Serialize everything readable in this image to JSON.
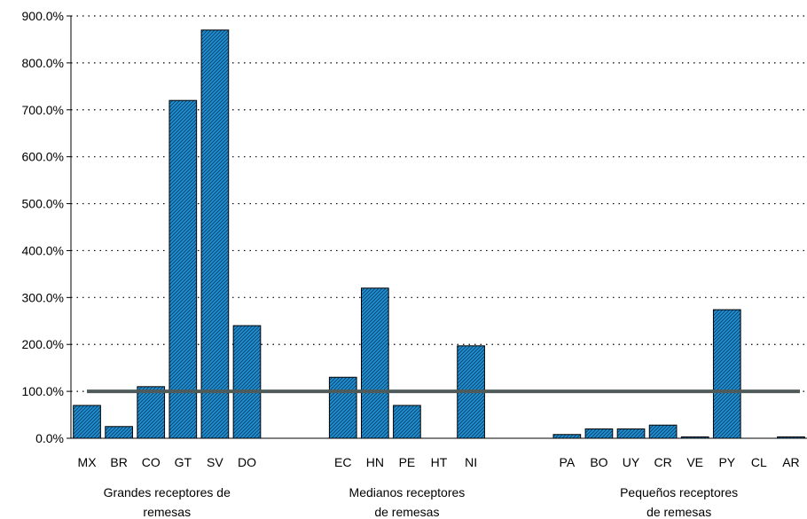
{
  "chart_data": {
    "type": "bar",
    "ylim": [
      0,
      900
    ],
    "ytick_values": [
      0,
      100,
      200,
      300,
      400,
      500,
      600,
      700,
      800,
      900
    ],
    "ytick_labels": [
      "0.0%",
      "100.0%",
      "200.0%",
      "300.0%",
      "400.0%",
      "500.0%",
      "600.0%",
      "700.0%",
      "800.0%",
      "900.0%"
    ],
    "grid": "horizontal dotted",
    "categories": [
      "MX",
      "BR",
      "CO",
      "GT",
      "SV",
      "DO",
      "",
      "",
      "EC",
      "HN",
      "PE",
      "HT",
      "NI",
      "",
      "",
      "PA",
      "BO",
      "UY",
      "CR",
      "VE",
      "PY",
      "CL",
      "AR"
    ],
    "values": [
      70,
      25,
      110,
      720,
      870,
      240,
      null,
      null,
      130,
      320,
      70,
      0,
      197,
      null,
      null,
      8,
      20,
      20,
      28,
      3,
      274,
      0,
      3
    ],
    "reference_line": {
      "value": 100,
      "color": "#4f5b5a"
    },
    "bar_color": "#1e90d2",
    "groups": [
      {
        "line1": "Grandes receptores de",
        "line2": "remesas",
        "from": 0,
        "to": 5
      },
      {
        "line1": "Medianos receptores",
        "line2": "de remesas",
        "from": 8,
        "to": 12
      },
      {
        "line1": "Pequeños receptores",
        "line2": "de remesas",
        "from": 15,
        "to": 22
      }
    ]
  }
}
